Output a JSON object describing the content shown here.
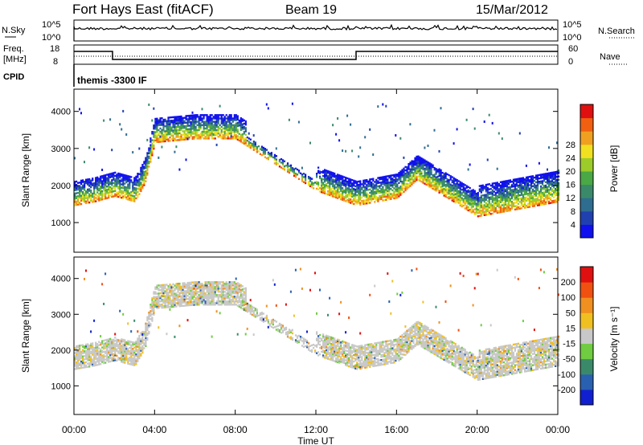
{
  "header": {
    "station": "Fort Hays East (fitACF)",
    "beam": "Beam 19",
    "date": "15/Mar/2012"
  },
  "noise_panel": {
    "left_label": "N.Sky",
    "right_label": "N.Search",
    "left_ticks": [
      "10^5",
      "10^0"
    ],
    "right_ticks": [
      "10^5",
      "10^0"
    ]
  },
  "freq_panel": {
    "left_label_line1": "Freq.",
    "left_label_line2": "[MHz]",
    "right_label": "Nave",
    "left_ticks": [
      "18",
      "8"
    ],
    "right_ticks": [
      "60",
      "0"
    ]
  },
  "cpid": {
    "label": "CPID",
    "value": "themis -3300 IF"
  },
  "time_axis": {
    "label": "Time UT",
    "ticks": [
      "00:00",
      "04:00",
      "08:00",
      "12:00",
      "16:00",
      "20:00",
      "00:00"
    ]
  },
  "chart_data": [
    {
      "type": "heatmap",
      "parameter": "Power",
      "ylabel": "Slant Range [km]",
      "colorbar_label": "Power [dB]",
      "yticks": [
        1000,
        2000,
        3000,
        4000
      ],
      "ylim": [
        200,
        4600
      ],
      "xlim_hours": [
        0,
        24
      ],
      "colorbar_ticks": [
        "4",
        "8",
        "12",
        "16",
        "20",
        "24",
        "28"
      ],
      "colorbar_colors": [
        "#1010ee",
        "#2040b0",
        "#2f6d90",
        "#3a8a6a",
        "#4aa845",
        "#9ccc2a",
        "#f0e020",
        "#f0a020",
        "#f06010",
        "#e01010"
      ],
      "scatter_band_km": [
        [
          0,
          1600
        ],
        [
          1,
          1700
        ],
        [
          2,
          1850
        ],
        [
          3,
          1700
        ],
        [
          3.5,
          2200
        ],
        [
          4,
          3300
        ],
        [
          6,
          3400
        ],
        [
          8,
          3400
        ],
        [
          12,
          2000
        ],
        [
          14,
          1600
        ],
        [
          16,
          1800
        ],
        [
          17,
          2300
        ],
        [
          20,
          1300
        ],
        [
          24,
          1700
        ]
      ]
    },
    {
      "type": "heatmap",
      "parameter": "Velocity",
      "ylabel": "Slant Range [km]",
      "colorbar_label": "Velocity [m s⁻¹]",
      "yticks": [
        1000,
        2000,
        3000,
        4000
      ],
      "ylim": [
        200,
        4600
      ],
      "xlim_hours": [
        0,
        24
      ],
      "colorbar_ticks": [
        "200",
        "100",
        "50",
        "15",
        "-15",
        "-50",
        "-100",
        "-200"
      ],
      "colorbar_colors": [
        "#1020d0",
        "#2a60b0",
        "#3a8a6a",
        "#70cc40",
        "#c8c8c8",
        "#f0c020",
        "#f09020",
        "#f05010",
        "#e01010"
      ]
    }
  ]
}
